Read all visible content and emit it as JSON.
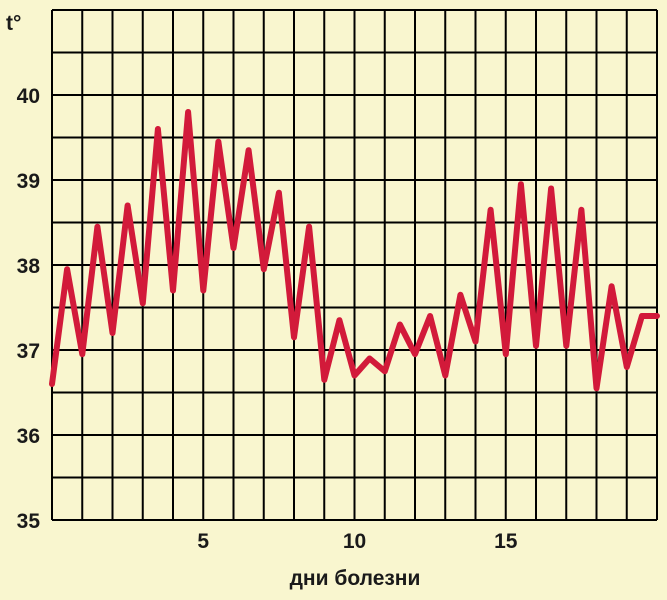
{
  "chart_data": {
    "type": "line",
    "title": "",
    "ylabel": "t°",
    "xlabel": "дни болезни",
    "xlim": [
      0,
      20
    ],
    "ylim": [
      35,
      41
    ],
    "y_ticks": [
      "35",
      "36",
      "37",
      "38",
      "39",
      "40"
    ],
    "x_ticks": [
      "5",
      "10",
      "15"
    ],
    "grid": true,
    "line_color": "#d21a3a",
    "grid_color": "#000000",
    "background": "#f9f6cf",
    "series": [
      {
        "x": [
          0,
          0.5,
          1,
          1.5,
          2,
          2.5,
          3,
          3.5,
          4,
          4.5,
          5,
          5.5,
          6,
          6.5,
          7,
          7.5,
          8,
          8.5,
          9,
          9.5,
          10,
          10.5,
          11,
          11.5,
          12,
          12.5,
          13,
          13.5,
          14,
          14.5,
          15,
          15.5,
          16,
          16.5,
          17,
          17.5,
          18,
          18.5,
          19,
          19.5,
          20
        ],
        "values": [
          36.6,
          37.95,
          36.95,
          38.45,
          37.2,
          38.7,
          37.55,
          39.6,
          37.7,
          39.8,
          37.7,
          39.45,
          38.2,
          39.35,
          37.95,
          38.85,
          37.15,
          38.45,
          36.65,
          37.35,
          36.7,
          36.9,
          36.75,
          37.3,
          36.95,
          37.4,
          36.7,
          37.65,
          37.1,
          38.65,
          36.95,
          38.95,
          37.05,
          38.9,
          37.05,
          38.65,
          36.55,
          37.75,
          36.8,
          37.4,
          37.4
        ]
      }
    ]
  }
}
